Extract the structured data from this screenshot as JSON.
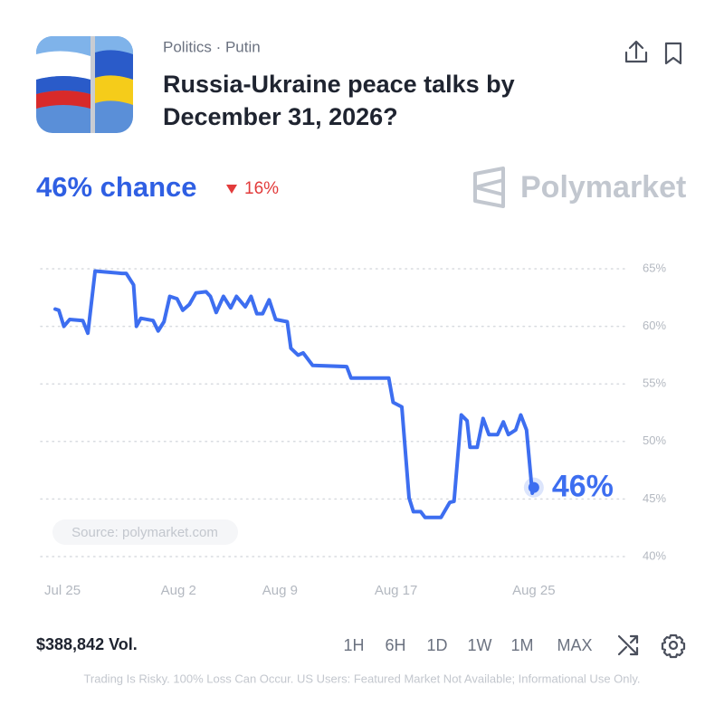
{
  "header": {
    "category": "Politics · Putin",
    "title_lines": [
      "Russia-Ukraine peace talks by",
      "December 31, 2026?"
    ],
    "chance": "46% chance",
    "change": "16%",
    "brand": "Polymarket"
  },
  "chart_data": {
    "type": "line",
    "x": [
      -0.5,
      -0.25,
      0.1,
      0.5,
      1.4,
      1.75,
      2.25,
      4.1,
      4.4,
      4.9,
      5.1,
      5.4,
      6.25,
      6.6,
      7.0,
      7.4,
      7.9,
      8.3,
      8.75,
      9.2,
      9.9,
      10.2,
      10.6,
      11.1,
      11.6,
      12.0,
      12.6,
      13.0,
      13.4,
      13.8,
      14.25,
      14.7,
      15.5,
      15.75,
      16.25,
      16.6,
      17.25,
      19.6,
      19.9,
      22.5,
      22.8,
      23.4,
      23.9,
      24.2,
      24.7,
      25.0,
      26.1,
      26.7,
      27.0,
      27.5,
      27.9,
      28.1,
      28.6,
      29.0,
      29.4,
      30.0,
      30.4,
      30.75,
      31.25,
      31.6,
      32.0,
      32.4,
      32.5
    ],
    "values": [
      61.5,
      61.4,
      60.0,
      60.6,
      60.5,
      59.4,
      64.8,
      64.6,
      64.6,
      63.6,
      60.0,
      60.7,
      60.5,
      59.6,
      60.4,
      62.6,
      62.4,
      61.4,
      61.9,
      62.9,
      63.0,
      62.6,
      61.2,
      62.6,
      61.6,
      62.6,
      61.7,
      62.6,
      61.1,
      61.1,
      62.3,
      60.6,
      60.4,
      58.1,
      57.5,
      57.7,
      56.6,
      56.5,
      55.5,
      55.5,
      53.4,
      53.0,
      45.1,
      43.9,
      43.9,
      43.4,
      43.4,
      44.7,
      44.8,
      52.3,
      51.8,
      49.5,
      49.5,
      52.0,
      50.6,
      50.6,
      51.7,
      50.6,
      51.0,
      52.3,
      51.0,
      45.5,
      46
    ],
    "color": "#3d6ef0",
    "end_label": "46%",
    "source": "Source: polymarket.com",
    "xlim": [
      -1.5,
      38.75
    ],
    "ylim": [
      40,
      65
    ],
    "xticks": [
      {
        "value": 0,
        "label": "Jul 25"
      },
      {
        "value": 8,
        "label": "Aug 2"
      },
      {
        "value": 15,
        "label": "Aug 9"
      },
      {
        "value": 23,
        "label": "Aug 17"
      },
      {
        "value": 32.5,
        "label": "Aug 25"
      }
    ],
    "yticks": [
      {
        "value": 40,
        "label": "40%"
      },
      {
        "value": 45,
        "label": "45%"
      },
      {
        "value": 50,
        "label": "50%"
      },
      {
        "value": 55,
        "label": "55%"
      },
      {
        "value": 60,
        "label": "60%"
      },
      {
        "value": 65,
        "label": "65%"
      }
    ],
    "grid": true
  },
  "footer": {
    "volume": "$388,842 Vol.",
    "timeframes": [
      "1H",
      "6H",
      "1D",
      "1W",
      "1M",
      "MAX"
    ],
    "disclaimer": "Trading Is Risky. 100% Loss Can Occur. US Users: Featured Market Not Available; Informational Use Only."
  }
}
